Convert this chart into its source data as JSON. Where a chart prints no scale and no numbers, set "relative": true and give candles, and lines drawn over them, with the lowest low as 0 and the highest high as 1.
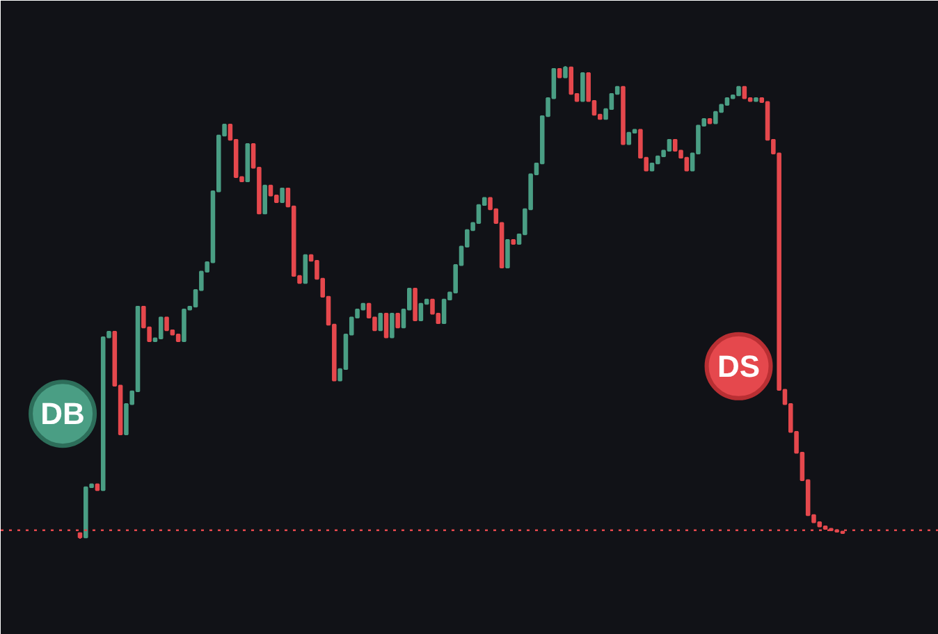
{
  "chart_data": {
    "type": "candlestick",
    "relative": true,
    "colors": [
      "#e5484d",
      "#4a9e84",
      "#4a9e84",
      "#e5484d",
      "#4a9e84",
      "#4a9e84",
      "#e5484d",
      "#e5484d",
      "#4a9e84",
      "#4a9e84",
      "#4a9e84",
      "#e5484d",
      "#e5484d",
      "#4a9e84",
      "#4a9e84",
      "#e5484d",
      "#e5484d",
      "#e5484d",
      "#4a9e84",
      "#4a9e84",
      "#4a9e84",
      "#4a9e84",
      "#4a9e84",
      "#4a9e84",
      "#4a9e84",
      "#4a9e84",
      "#e5484d",
      "#e5484d",
      "#e5484d",
      "#4a9e84",
      "#e5484d",
      "#e5484d",
      "#4a9e84",
      "#e5484d",
      "#e5484d",
      "#4a9e84",
      "#e5484d",
      "#e5484d",
      "#e5484d",
      "#4a9e84",
      "#e5484d",
      "#e5484d",
      "#e5484d",
      "#e5484d",
      "#e5484d",
      "#4a9e84",
      "#4a9e84",
      "#4a9e84",
      "#4a9e84",
      "#4a9e84",
      "#e5484d",
      "#e5484d",
      "#4a9e84",
      "#e5484d",
      "#4a9e84",
      "#e5484d",
      "#4a9e84",
      "#4a9e84",
      "#e5484d",
      "#4a9e84",
      "#4a9e84",
      "#e5484d",
      "#e5484d",
      "#4a9e84",
      "#4a9e84",
      "#4a9e84",
      "#4a9e84",
      "#4a9e84",
      "#4a9e84",
      "#4a9e84",
      "#4a9e84",
      "#e5484d",
      "#e5484d",
      "#e5484d",
      "#4a9e84",
      "#e5484d",
      "#4a9e84",
      "#4a9e84",
      "#4a9e84",
      "#4a9e84",
      "#4a9e84",
      "#4a9e84",
      "#4a9e84",
      "#e5484d",
      "#4a9e84",
      "#e5484d",
      "#e5484d",
      "#4a9e84",
      "#e5484d",
      "#e5484d",
      "#e5484d",
      "#4a9e84",
      "#4a9e84",
      "#4a9e84",
      "#e5484d",
      "#4a9e84",
      "#4a9e84",
      "#e5484d",
      "#e5484d",
      "#4a9e84",
      "#4a9e84",
      "#4a9e84",
      "#4a9e84",
      "#e5484d",
      "#e5484d",
      "#e5484d",
      "#4a9e84",
      "#4a9e84",
      "#4a9e84",
      "#e5484d",
      "#4a9e84",
      "#4a9e84",
      "#4a9e84",
      "#4a9e84",
      "#4a9e84",
      "#e5484d",
      "#e5484d",
      "#4a9e84",
      "#e5484d",
      "#e5484d",
      "#e5484d",
      "#e5484d",
      "#e5484d",
      "#e5484d",
      "#e5484d",
      "#e5484d",
      "#e5484d",
      "#e5484d",
      "#e5484d",
      "#e5484d",
      "#e5484d",
      "#e5484d",
      "#e5484d"
    ],
    "categories": [
      null,
      null,
      null,
      null,
      null,
      null,
      null,
      null,
      null,
      null,
      null,
      null,
      null,
      null,
      null,
      null,
      null,
      null,
      null,
      null,
      null,
      null,
      null,
      null,
      null,
      null,
      null,
      null,
      null,
      null,
      null,
      null,
      null,
      null,
      null,
      null,
      null,
      null,
      null,
      null,
      null,
      null,
      null,
      null,
      null,
      null,
      null,
      null,
      null,
      null,
      null,
      null,
      null,
      null,
      null,
      null,
      null,
      null,
      null,
      null,
      null,
      null,
      null,
      null,
      null,
      null,
      null,
      null,
      null,
      null,
      null,
      null,
      null,
      null,
      null,
      null,
      null,
      null,
      null,
      null,
      null,
      null,
      null,
      null,
      null,
      null,
      null,
      null,
      null,
      null,
      null,
      null,
      null,
      null,
      null,
      null,
      null,
      null,
      null,
      null,
      null,
      null,
      null,
      null,
      null,
      null,
      null,
      null,
      null,
      null,
      null,
      null,
      null,
      null,
      null,
      null,
      null,
      null,
      null,
      null,
      null,
      null,
      null,
      null,
      null,
      null,
      null,
      null,
      null,
      null,
      null,
      null,
      null
    ],
    "ohlc": [
      [
        0.012,
        0.012,
        0,
        0.003
      ],
      [
        0.003,
        0.109,
        0.003,
        0.109
      ],
      [
        0.109,
        0.115,
        0.109,
        0.115
      ],
      [
        0.115,
        0.115,
        0.103,
        0.103
      ],
      [
        0.103,
        0.426,
        0.103,
        0.426
      ],
      [
        0.426,
        0.438,
        0.426,
        0.438
      ],
      [
        0.438,
        0.438,
        0.324,
        0.324
      ],
      [
        0.324,
        0.324,
        0.221,
        0.221
      ],
      [
        0.221,
        0.285,
        0.221,
        0.285
      ],
      [
        0.285,
        0.312,
        0.285,
        0.312
      ],
      [
        0.312,
        0.491,
        0.312,
        0.491
      ],
      [
        0.491,
        0.491,
        0.447,
        0.447
      ],
      [
        0.447,
        0.447,
        0.418,
        0.418
      ],
      [
        0.418,
        0.424,
        0.418,
        0.424
      ],
      [
        0.424,
        0.468,
        0.424,
        0.468
      ],
      [
        0.468,
        0.468,
        0.441,
        0.441
      ],
      [
        0.441,
        0.441,
        0.432,
        0.432
      ],
      [
        0.432,
        0.432,
        0.418,
        0.418
      ],
      [
        0.418,
        0.485,
        0.418,
        0.485
      ],
      [
        0.485,
        0.491,
        0.485,
        0.491
      ],
      [
        0.491,
        0.526,
        0.491,
        0.526
      ],
      [
        0.526,
        0.565,
        0.526,
        0.565
      ],
      [
        0.565,
        0.585,
        0.565,
        0.585
      ],
      [
        0.585,
        0.735,
        0.585,
        0.735
      ],
      [
        0.735,
        0.853,
        0.735,
        0.853
      ],
      [
        0.853,
        0.876,
        0.853,
        0.876
      ],
      [
        0.876,
        0.876,
        0.844,
        0.844
      ],
      [
        0.844,
        0.844,
        0.765,
        0.765
      ],
      [
        0.765,
        0.765,
        0.756,
        0.756
      ],
      [
        0.756,
        0.835,
        0.756,
        0.835
      ],
      [
        0.835,
        0.835,
        0.785,
        0.785
      ],
      [
        0.785,
        0.785,
        0.688,
        0.688
      ],
      [
        0.688,
        0.747,
        0.688,
        0.747
      ],
      [
        0.747,
        0.747,
        0.726,
        0.726
      ],
      [
        0.726,
        0.726,
        0.712,
        0.712
      ],
      [
        0.712,
        0.741,
        0.712,
        0.741
      ],
      [
        0.741,
        0.741,
        0.703,
        0.703
      ],
      [
        0.703,
        0.703,
        0.556,
        0.556
      ],
      [
        0.556,
        0.556,
        0.541,
        0.541
      ],
      [
        0.541,
        0.6,
        0.541,
        0.6
      ],
      [
        0.6,
        0.6,
        0.588,
        0.588
      ],
      [
        0.588,
        0.588,
        0.55,
        0.55
      ],
      [
        0.55,
        0.55,
        0.512,
        0.512
      ],
      [
        0.512,
        0.512,
        0.453,
        0.453
      ],
      [
        0.453,
        0.453,
        0.335,
        0.335
      ],
      [
        0.335,
        0.359,
        0.335,
        0.359
      ],
      [
        0.359,
        0.432,
        0.359,
        0.432
      ],
      [
        0.432,
        0.468,
        0.432,
        0.468
      ],
      [
        0.468,
        0.485,
        0.468,
        0.485
      ],
      [
        0.485,
        0.497,
        0.485,
        0.497
      ],
      [
        0.497,
        0.497,
        0.468,
        0.468
      ],
      [
        0.468,
        0.468,
        0.441,
        0.441
      ],
      [
        0.441,
        0.476,
        0.441,
        0.476
      ],
      [
        0.476,
        0.476,
        0.426,
        0.426
      ],
      [
        0.426,
        0.476,
        0.426,
        0.476
      ],
      [
        0.476,
        0.476,
        0.447,
        0.447
      ],
      [
        0.447,
        0.485,
        0.447,
        0.485
      ],
      [
        0.485,
        0.529,
        0.485,
        0.529
      ],
      [
        0.529,
        0.529,
        0.462,
        0.462
      ],
      [
        0.462,
        0.497,
        0.462,
        0.497
      ],
      [
        0.497,
        0.506,
        0.497,
        0.506
      ],
      [
        0.506,
        0.506,
        0.476,
        0.476
      ],
      [
        0.476,
        0.476,
        0.456,
        0.456
      ],
      [
        0.456,
        0.506,
        0.456,
        0.506
      ],
      [
        0.506,
        0.521,
        0.506,
        0.521
      ],
      [
        0.521,
        0.579,
        0.521,
        0.579
      ],
      [
        0.579,
        0.618,
        0.579,
        0.618
      ],
      [
        0.618,
        0.653,
        0.618,
        0.653
      ],
      [
        0.653,
        0.668,
        0.653,
        0.668
      ],
      [
        0.668,
        0.706,
        0.668,
        0.706
      ],
      [
        0.706,
        0.721,
        0.706,
        0.721
      ],
      [
        0.721,
        0.721,
        0.697,
        0.697
      ],
      [
        0.697,
        0.697,
        0.668,
        0.668
      ],
      [
        0.668,
        0.668,
        0.574,
        0.574
      ],
      [
        0.574,
        0.632,
        0.574,
        0.632
      ],
      [
        0.632,
        0.632,
        0.624,
        0.624
      ],
      [
        0.624,
        0.644,
        0.624,
        0.644
      ],
      [
        0.644,
        0.697,
        0.644,
        0.697
      ],
      [
        0.697,
        0.771,
        0.697,
        0.771
      ],
      [
        0.771,
        0.794,
        0.771,
        0.794
      ],
      [
        0.794,
        0.894,
        0.794,
        0.894
      ],
      [
        0.894,
        0.932,
        0.894,
        0.932
      ],
      [
        0.932,
        0.994,
        0.932,
        0.994
      ],
      [
        0.994,
        0.994,
        0.976,
        0.976
      ],
      [
        0.976,
        1.0,
        0.976,
        0.997
      ],
      [
        0.997,
        0.997,
        0.941,
        0.941
      ],
      [
        0.941,
        0.941,
        0.926,
        0.926
      ],
      [
        0.926,
        0.985,
        0.926,
        0.985
      ],
      [
        0.985,
        0.985,
        0.926,
        0.926
      ],
      [
        0.926,
        0.926,
        0.897,
        0.897
      ],
      [
        0.897,
        0.897,
        0.888,
        0.888
      ],
      [
        0.888,
        0.909,
        0.888,
        0.909
      ],
      [
        0.909,
        0.941,
        0.909,
        0.941
      ],
      [
        0.941,
        0.956,
        0.941,
        0.956
      ],
      [
        0.956,
        0.956,
        0.835,
        0.835
      ],
      [
        0.835,
        0.859,
        0.835,
        0.859
      ],
      [
        0.859,
        0.865,
        0.859,
        0.865
      ],
      [
        0.865,
        0.865,
        0.806,
        0.806
      ],
      [
        0.806,
        0.806,
        0.779,
        0.779
      ],
      [
        0.779,
        0.794,
        0.779,
        0.794
      ],
      [
        0.794,
        0.809,
        0.794,
        0.809
      ],
      [
        0.809,
        0.821,
        0.809,
        0.821
      ],
      [
        0.821,
        0.844,
        0.821,
        0.844
      ],
      [
        0.844,
        0.844,
        0.821,
        0.821
      ],
      [
        0.821,
        0.821,
        0.806,
        0.806
      ],
      [
        0.806,
        0.806,
        0.779,
        0.779
      ],
      [
        0.779,
        0.815,
        0.779,
        0.815
      ],
      [
        0.815,
        0.874,
        0.815,
        0.874
      ],
      [
        0.874,
        0.888,
        0.874,
        0.888
      ],
      [
        0.888,
        0.888,
        0.879,
        0.879
      ],
      [
        0.879,
        0.903,
        0.879,
        0.903
      ],
      [
        0.903,
        0.918,
        0.903,
        0.918
      ],
      [
        0.918,
        0.932,
        0.918,
        0.932
      ],
      [
        0.932,
        0.938,
        0.932,
        0.938
      ],
      [
        0.938,
        0.956,
        0.938,
        0.956
      ],
      [
        0.956,
        0.956,
        0.932,
        0.932
      ],
      [
        0.932,
        0.932,
        0.926,
        0.926
      ],
      [
        0.926,
        0.932,
        0.926,
        0.932
      ],
      [
        0.932,
        0.932,
        0.924,
        0.924
      ],
      [
        0.924,
        0.924,
        0.844,
        0.844
      ],
      [
        0.844,
        0.844,
        0.815,
        0.815
      ],
      [
        0.815,
        0.815,
        0.315,
        0.315
      ],
      [
        0.315,
        0.315,
        0.285,
        0.285
      ],
      [
        0.285,
        0.285,
        0.226,
        0.226
      ],
      [
        0.226,
        0.226,
        0.182,
        0.182
      ],
      [
        0.182,
        0.182,
        0.124,
        0.124
      ],
      [
        0.124,
        0.124,
        0.05,
        0.05
      ],
      [
        0.05,
        0.05,
        0.035,
        0.035
      ],
      [
        0.035,
        0.035,
        0.026,
        0.026
      ],
      [
        0.026,
        0.026,
        0.021,
        0.021
      ],
      [
        0.021,
        0.021,
        0.018,
        0.018
      ],
      [
        0.018,
        0.018,
        0.015,
        0.015
      ],
      [
        0.015,
        0.015,
        0.012,
        0.012
      ]
    ],
    "ref_lines": [
      {
        "axis": "y",
        "value": 0.018,
        "color": "#e5484d",
        "line_style": "dotted"
      }
    ],
    "annotations": [
      "DB",
      "DS"
    ]
  }
}
